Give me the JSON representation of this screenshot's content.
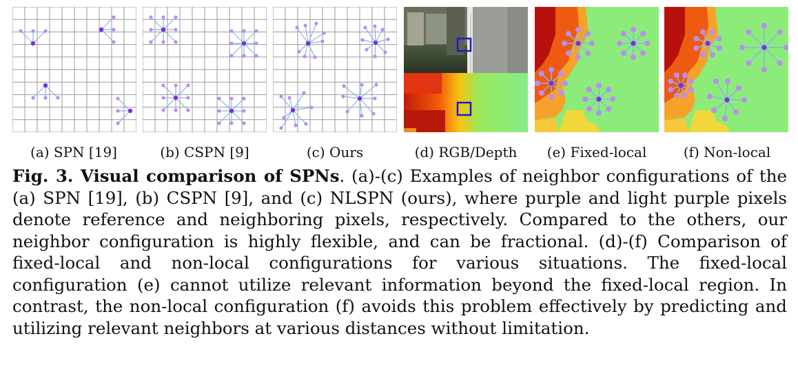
{
  "figure": {
    "subfigures": [
      {
        "id": "a",
        "label": "(a) SPN [19]"
      },
      {
        "id": "b",
        "label": "(b) CSPN [9]"
      },
      {
        "id": "c",
        "label": "(c) Ours"
      },
      {
        "id": "d",
        "label": "(d) RGB/Depth"
      },
      {
        "id": "e",
        "label": "(e) Fixed-local"
      },
      {
        "id": "f",
        "label": "(f) Non-local"
      }
    ],
    "caption": {
      "label": "Fig. 3. Visual comparison of SPNs",
      "text": ". (a)-(c) Examples of neighbor configurations of the (a) SPN [19], (b) CSPN [9], and (c) NLSPN (ours), where purple and light purple pixels denote reference and neighboring pixels, respectively. Compared to the others, our neighbor configuration is highly flexible, and can be fractional. (d)-(f) Comparison of fixed-local and non-local configurations for various situations. The fixed-local configuration (e) cannot utilize relevant information beyond the fixed-local region. In contrast, the non-local configuration (f) avoids this problem effectively by predicting and utilizing relevant neighbors at various distances without limitation."
    },
    "colors": {
      "reference_pixel": "#7a2fd8",
      "neighbor_pixel": "#b98ef0",
      "edge": "#8ab4e8",
      "grid": "#9a9a9a",
      "highlight_box": "#1a1acc"
    }
  }
}
